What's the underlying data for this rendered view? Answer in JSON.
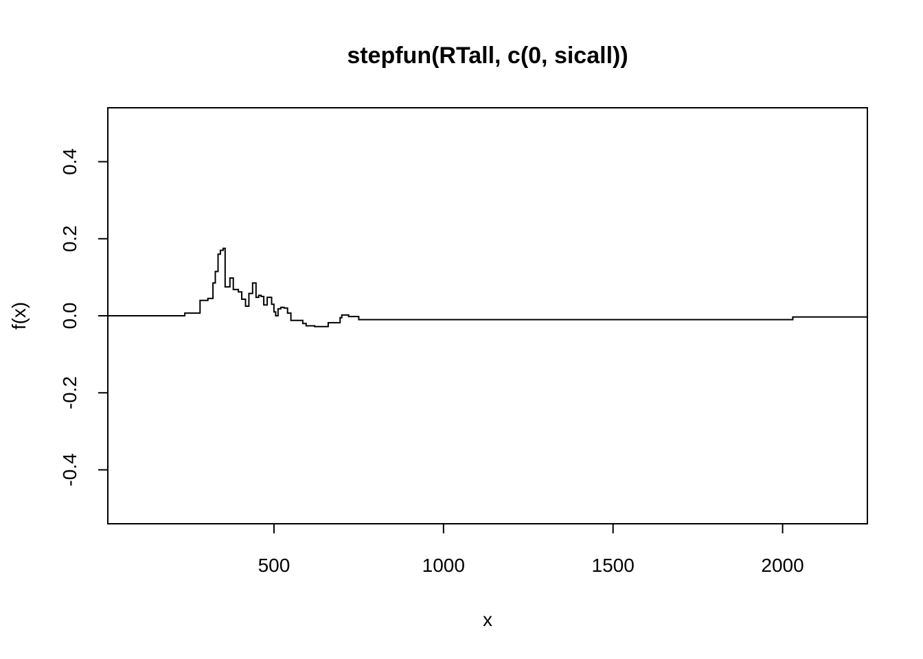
{
  "chart_data": {
    "type": "line",
    "title": "stepfun(RTall, c(0, sicall))",
    "xlabel": "x",
    "ylabel": "f(x)",
    "xlim": [
      10,
      2250
    ],
    "ylim": [
      -0.54,
      0.54
    ],
    "x_ticks": [
      {
        "value": 500,
        "label": "500"
      },
      {
        "value": 1000,
        "label": "1000"
      },
      {
        "value": 1500,
        "label": "1500"
      },
      {
        "value": 2000,
        "label": "2000"
      }
    ],
    "y_ticks": [
      {
        "value": -0.4,
        "label": "-0.4"
      },
      {
        "value": -0.2,
        "label": "-0.2"
      },
      {
        "value": 0.0,
        "label": "0.0"
      },
      {
        "value": 0.2,
        "label": "0.2"
      },
      {
        "value": 0.4,
        "label": "0.4"
      }
    ],
    "grid": false,
    "legend": "none",
    "line_color": "#000000",
    "series": [
      {
        "style": "step",
        "x": [
          10,
          237,
          282,
          305,
          320,
          327,
          335,
          342,
          350,
          356,
          362,
          370,
          380,
          395,
          405,
          416,
          426,
          437,
          447,
          455,
          462,
          470,
          480,
          493,
          500,
          505,
          512,
          520,
          530,
          540,
          550,
          575,
          585,
          595,
          620,
          640,
          660,
          695,
          700,
          710,
          720,
          750,
          765,
          1537,
          2030,
          2250
        ],
        "y": [
          0.0,
          0.007,
          0.04,
          0.045,
          0.085,
          0.115,
          0.16,
          0.17,
          0.175,
          0.075,
          0.075,
          0.098,
          0.068,
          0.062,
          0.043,
          0.025,
          0.058,
          0.085,
          0.048,
          0.053,
          0.05,
          0.028,
          0.048,
          0.03,
          0.01,
          0.0,
          0.018,
          0.022,
          0.02,
          0.007,
          -0.012,
          -0.012,
          -0.02,
          -0.026,
          -0.028,
          -0.028,
          -0.018,
          -0.005,
          0.002,
          0.002,
          -0.002,
          -0.01,
          -0.01,
          -0.01,
          -0.003,
          -0.003
        ]
      }
    ]
  }
}
